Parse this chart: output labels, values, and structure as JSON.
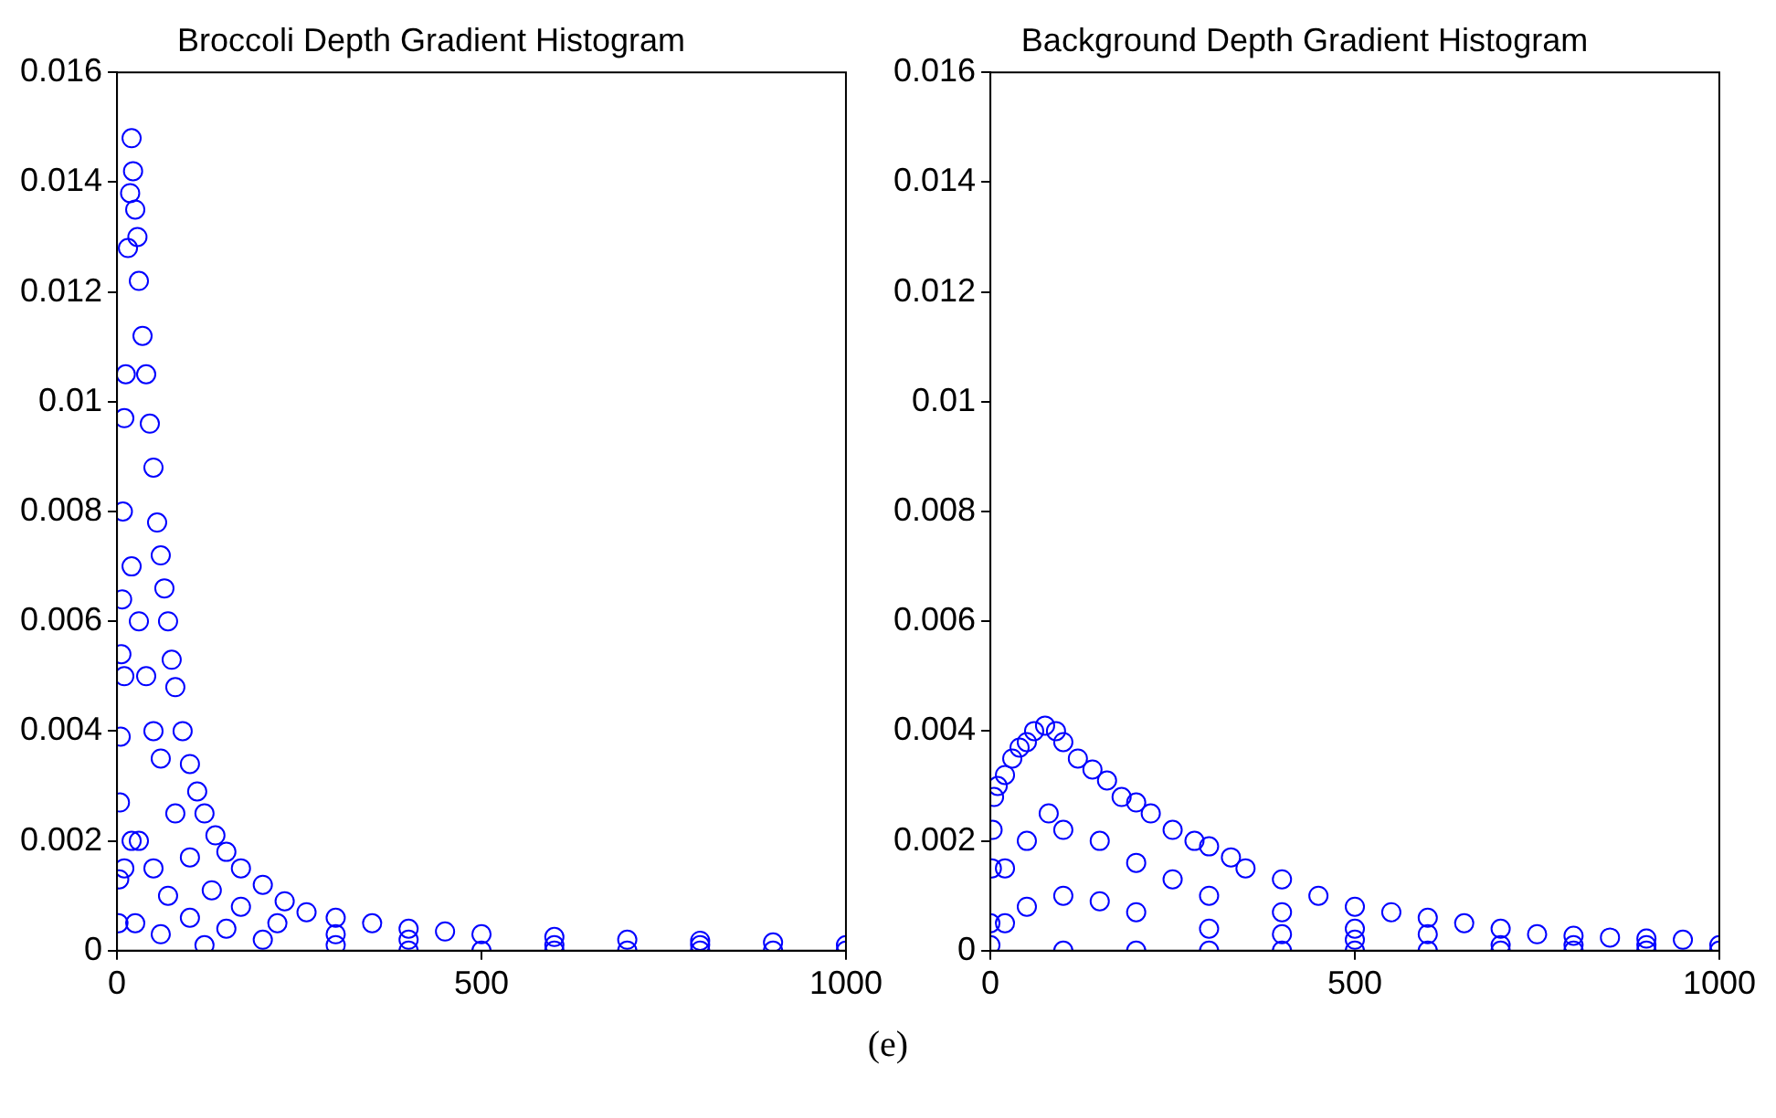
{
  "chart_data": [
    {
      "type": "scatter",
      "title": "Broccoli Depth Gradient Histogram",
      "xlim": [
        0,
        1000
      ],
      "xticks": [
        0,
        500,
        1000
      ],
      "ylim": [
        0,
        0.016
      ],
      "yticks": [
        0,
        0.002,
        0.004,
        0.006,
        0.008,
        0.01,
        0.012,
        0.014,
        0.016
      ],
      "marker": "circle",
      "annotations": [
        "(e)"
      ],
      "series": [
        {
          "color": "#0000ff",
          "x": [
            2,
            3,
            4,
            5,
            6,
            7,
            8,
            10,
            12,
            15,
            18,
            20,
            22,
            25,
            28,
            30,
            35,
            40,
            45,
            50,
            55,
            60,
            65,
            70,
            75,
            80,
            90,
            100,
            110,
            120,
            135,
            150,
            170,
            200,
            230,
            260,
            300,
            350,
            400,
            450,
            500,
            600,
            700,
            800,
            900,
            1000,
            10,
            20,
            30,
            40,
            50,
            60,
            80,
            100,
            130,
            170,
            220,
            300,
            400,
            600,
            800,
            10,
            20,
            30,
            50,
            70,
            100,
            150,
            200,
            300,
            400,
            500,
            600,
            700,
            800,
            900,
            1000,
            25,
            60,
            120
          ],
          "values": [
            0.0005,
            0.0013,
            0.0027,
            0.0039,
            0.0054,
            0.0064,
            0.008,
            0.0097,
            0.0105,
            0.0128,
            0.0138,
            0.0148,
            0.0142,
            0.0135,
            0.013,
            0.0122,
            0.0112,
            0.0105,
            0.0096,
            0.0088,
            0.0078,
            0.0072,
            0.0066,
            0.006,
            0.0053,
            0.0048,
            0.004,
            0.0034,
            0.0029,
            0.0025,
            0.0021,
            0.0018,
            0.0015,
            0.0012,
            0.0009,
            0.0007,
            0.0006,
            0.0005,
            0.0004,
            0.00035,
            0.0003,
            0.00025,
            0.0002,
            0.00018,
            0.00015,
            0.0001,
            0.005,
            0.007,
            0.006,
            0.005,
            0.004,
            0.0035,
            0.0025,
            0.0017,
            0.0011,
            0.0008,
            0.0005,
            0.0003,
            0.0002,
            0.0001,
            0.0001,
            0.0015,
            0.002,
            0.002,
            0.0015,
            0.001,
            0.0006,
            0.0004,
            0.0002,
            0.0001,
            0,
            0,
            0,
            0,
            0,
            0,
            0,
            0.0005,
            0.0003,
            0.0001
          ]
        }
      ]
    },
    {
      "type": "scatter",
      "title": "Background Depth Gradient Histogram",
      "xlim": [
        0,
        1000
      ],
      "xticks": [
        0,
        500,
        1000
      ],
      "ylim": [
        0,
        0.016
      ],
      "yticks": [
        0,
        0.002,
        0.004,
        0.006,
        0.008,
        0.01,
        0.012,
        0.014,
        0.016
      ],
      "marker": "circle",
      "series": [
        {
          "color": "#0000ff",
          "x": [
            0,
            2,
            3,
            5,
            10,
            20,
            30,
            40,
            50,
            60,
            75,
            90,
            100,
            120,
            140,
            160,
            180,
            200,
            220,
            250,
            280,
            300,
            330,
            350,
            400,
            450,
            500,
            550,
            600,
            650,
            700,
            750,
            800,
            850,
            900,
            950,
            1000,
            20,
            50,
            80,
            100,
            150,
            200,
            250,
            300,
            400,
            500,
            600,
            20,
            50,
            100,
            150,
            200,
            300,
            400,
            500,
            700,
            800,
            900,
            100,
            200,
            300,
            400,
            500,
            600,
            700,
            800,
            900,
            1000,
            0
          ],
          "values": [
            0.0005,
            0.0015,
            0.0022,
            0.0028,
            0.003,
            0.0032,
            0.0035,
            0.0037,
            0.0038,
            0.004,
            0.0041,
            0.004,
            0.0038,
            0.0035,
            0.0033,
            0.0031,
            0.0028,
            0.0027,
            0.0025,
            0.0022,
            0.002,
            0.0019,
            0.0017,
            0.0015,
            0.0013,
            0.001,
            0.0008,
            0.0007,
            0.0006,
            0.0005,
            0.0004,
            0.0003,
            0.00027,
            0.00024,
            0.00022,
            0.0002,
            0.0001,
            0.0015,
            0.002,
            0.0025,
            0.0022,
            0.002,
            0.0016,
            0.0013,
            0.001,
            0.0007,
            0.0004,
            0.0003,
            0.0005,
            0.0008,
            0.001,
            0.0009,
            0.0007,
            0.0004,
            0.0003,
            0.0002,
            0.0001,
            0.0001,
            0.0001,
            0,
            0,
            0,
            0,
            0,
            0,
            0,
            0,
            0,
            0,
            0.0001
          ]
        }
      ]
    }
  ]
}
